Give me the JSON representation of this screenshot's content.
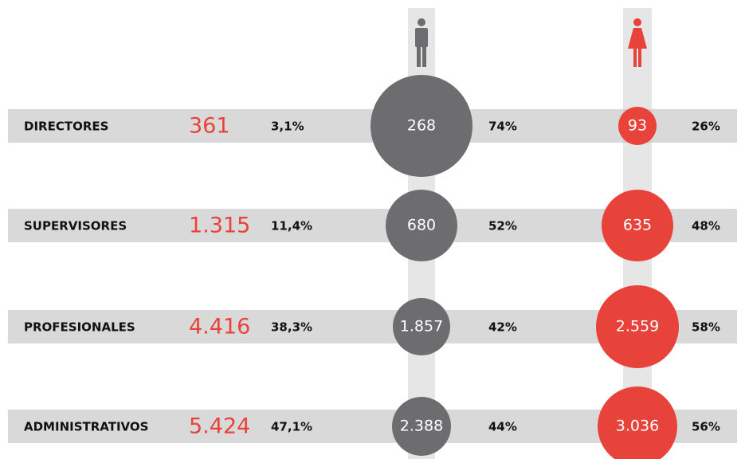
{
  "rows": [
    {
      "label": "DIRECTORES",
      "total": "361",
      "share": "3,1%",
      "men": "268",
      "men_pct": "74%",
      "women": "93",
      "women_pct": "26%"
    },
    {
      "label": "SUPERVISORES",
      "total": "1.315",
      "share": "11,4%",
      "men": "680",
      "men_pct": "52%",
      "women": "635",
      "women_pct": "48%"
    },
    {
      "label": "PROFESIONALES",
      "total": "4.416",
      "share": "38,3%",
      "men": "1.857",
      "men_pct": "42%",
      "women": "2.559",
      "women_pct": "58%"
    },
    {
      "label": "ADMINISTRATIVOS",
      "total": "5.424",
      "share": "47,1%",
      "men": "2.388",
      "men_pct": "44%",
      "women": "3.036",
      "women_pct": "56%"
    }
  ]
}
